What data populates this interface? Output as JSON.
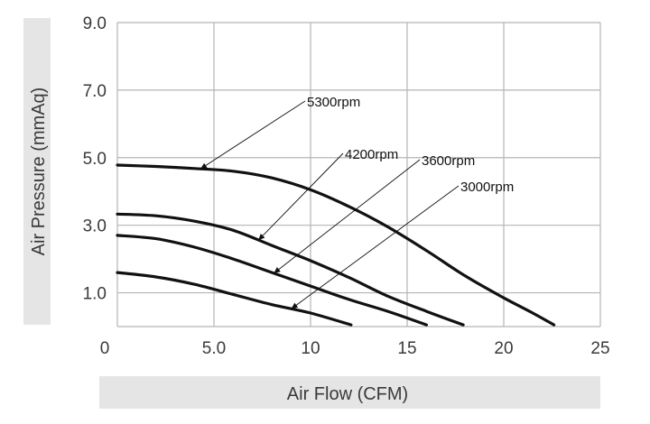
{
  "chart_data": {
    "type": "line",
    "xlabel": "Air Flow (CFM)",
    "ylabel": "Air Pressure (mmAq)",
    "xlim": [
      0,
      25
    ],
    "ylim": [
      0,
      9
    ],
    "x_ticks": [
      0,
      5,
      10,
      15,
      20,
      25
    ],
    "x_tick_labels": [
      "0",
      "5.0",
      "10",
      "15",
      "20",
      "25"
    ],
    "y_ticks": [
      1,
      3,
      5,
      7,
      9
    ],
    "y_tick_labels": [
      "1.0",
      "3.0",
      "5.0",
      "7.0",
      "9.0"
    ],
    "grid": true,
    "series": [
      {
        "name": "5300rpm",
        "points": [
          [
            0,
            4.78
          ],
          [
            2,
            4.74
          ],
          [
            4,
            4.68
          ],
          [
            6,
            4.6
          ],
          [
            8,
            4.4
          ],
          [
            10,
            4.05
          ],
          [
            12,
            3.55
          ],
          [
            14,
            2.95
          ],
          [
            16,
            2.25
          ],
          [
            18,
            1.5
          ],
          [
            20,
            0.85
          ],
          [
            21.5,
            0.4
          ],
          [
            22.6,
            0.05
          ]
        ]
      },
      {
        "name": "4200rpm",
        "points": [
          [
            0,
            3.33
          ],
          [
            2,
            3.28
          ],
          [
            4,
            3.12
          ],
          [
            6,
            2.85
          ],
          [
            8,
            2.4
          ],
          [
            10,
            1.95
          ],
          [
            12,
            1.45
          ],
          [
            14,
            0.9
          ],
          [
            16,
            0.45
          ],
          [
            17.9,
            0.05
          ]
        ]
      },
      {
        "name": "3600rpm",
        "points": [
          [
            0,
            2.7
          ],
          [
            2,
            2.6
          ],
          [
            4,
            2.35
          ],
          [
            6,
            2.0
          ],
          [
            8,
            1.6
          ],
          [
            10,
            1.2
          ],
          [
            12,
            0.8
          ],
          [
            14,
            0.45
          ],
          [
            16,
            0.05
          ]
        ]
      },
      {
        "name": "3000rpm",
        "points": [
          [
            0,
            1.6
          ],
          [
            2,
            1.47
          ],
          [
            4,
            1.25
          ],
          [
            6,
            0.95
          ],
          [
            8,
            0.65
          ],
          [
            10,
            0.4
          ],
          [
            12.1,
            0.05
          ]
        ]
      }
    ],
    "annotations": [
      {
        "text": "5300rpm",
        "series": "5300rpm",
        "at_x": 4.3
      },
      {
        "text": "4200rpm",
        "series": "4200rpm",
        "at_x": 7.3
      },
      {
        "text": "3600rpm",
        "series": "3600rpm",
        "at_x": 8.1
      },
      {
        "text": "3000rpm",
        "series": "3000rpm",
        "at_x": 9.0
      }
    ]
  },
  "colors": {
    "curve": "#111111",
    "grid": "#b4b4b4",
    "axis_title_band": "#e5e5e5"
  }
}
